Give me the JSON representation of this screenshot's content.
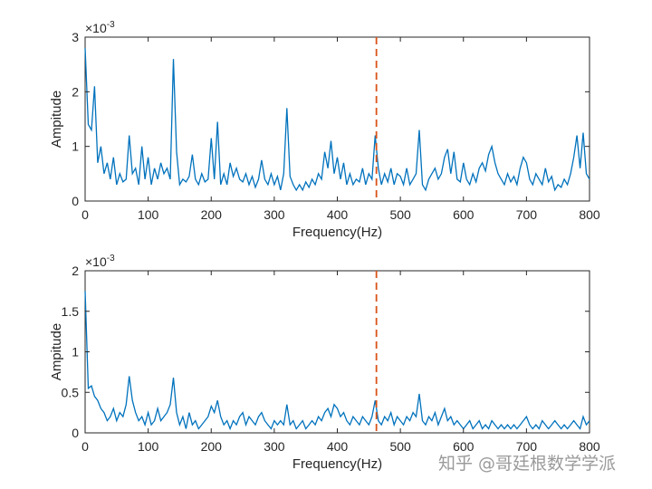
{
  "watermark": "知乎 @哥廷根数学学派",
  "chart_data": [
    {
      "type": "line",
      "xlabel": "Frequency(Hz)",
      "ylabel": "Ampitude",
      "exponent_label": "×10",
      "exponent": "-3",
      "xlim": [
        0,
        800
      ],
      "ylim": [
        0,
        3
      ],
      "xticks": [
        "0",
        "100",
        "200",
        "300",
        "400",
        "500",
        "600",
        "700",
        "800"
      ],
      "yticks": [
        "0",
        "1",
        "2",
        "3"
      ],
      "ytick_values": [
        0,
        1,
        2,
        3
      ],
      "marker_line_x": 462,
      "line_color": "#0072BD",
      "marker_color": "#D95319",
      "x_step": 5,
      "y_scale": 0.001,
      "values": [
        2.8,
        1.4,
        1.3,
        2.1,
        0.7,
        1.0,
        0.5,
        0.7,
        0.4,
        0.8,
        0.3,
        0.5,
        0.35,
        0.4,
        1.2,
        0.5,
        0.6,
        0.3,
        1.0,
        0.4,
        0.8,
        0.3,
        0.6,
        0.4,
        0.7,
        0.5,
        0.6,
        0.4,
        2.6,
        0.9,
        0.3,
        0.4,
        0.35,
        0.45,
        0.85,
        0.4,
        0.3,
        0.5,
        0.35,
        0.4,
        1.15,
        0.4,
        1.45,
        0.3,
        0.5,
        0.3,
        0.7,
        0.45,
        0.6,
        0.4,
        0.35,
        0.5,
        0.3,
        0.45,
        0.25,
        0.4,
        0.75,
        0.4,
        0.3,
        0.5,
        0.3,
        0.45,
        0.2,
        0.5,
        1.7,
        0.45,
        0.3,
        0.2,
        0.3,
        0.2,
        0.35,
        0.25,
        0.4,
        0.3,
        0.5,
        0.4,
        0.9,
        0.6,
        1.1,
        0.5,
        0.8,
        0.4,
        0.7,
        0.3,
        0.5,
        0.3,
        0.4,
        0.35,
        0.6,
        0.3,
        0.5,
        0.4,
        1.2,
        0.6,
        0.3,
        0.5,
        0.35,
        0.6,
        0.3,
        0.5,
        0.45,
        0.3,
        0.6,
        0.3,
        0.4,
        0.5,
        1.3,
        0.3,
        0.2,
        0.4,
        0.5,
        0.6,
        0.4,
        0.5,
        0.8,
        0.95,
        0.5,
        0.9,
        0.4,
        0.35,
        0.7,
        0.4,
        0.3,
        0.5,
        0.35,
        0.6,
        0.7,
        0.55,
        0.85,
        1.0,
        0.7,
        0.5,
        0.4,
        0.3,
        0.5,
        0.35,
        0.45,
        0.3,
        0.6,
        0.8,
        0.7,
        0.4,
        0.3,
        0.5,
        0.4,
        0.3,
        0.6,
        0.35,
        0.45,
        0.2,
        0.3,
        0.25,
        0.4,
        0.3,
        0.5,
        0.8,
        1.2,
        0.6,
        1.25,
        0.5,
        0.4
      ]
    },
    {
      "type": "line",
      "xlabel": "Frequency(Hz)",
      "ylabel": "Ampitude",
      "exponent_label": "×10",
      "exponent": "-3",
      "xlim": [
        0,
        800
      ],
      "ylim": [
        0,
        2
      ],
      "xticks": [
        "0",
        "100",
        "200",
        "300",
        "400",
        "500",
        "600",
        "700",
        "800"
      ],
      "yticks": [
        "0",
        "0.5",
        "1",
        "1.5",
        "2"
      ],
      "ytick_values": [
        0,
        0.5,
        1,
        1.5,
        2
      ],
      "marker_line_x": 462,
      "line_color": "#0072BD",
      "marker_color": "#D95319",
      "x_step": 5,
      "y_scale": 0.001,
      "values": [
        1.75,
        0.55,
        0.58,
        0.45,
        0.4,
        0.3,
        0.25,
        0.15,
        0.2,
        0.3,
        0.15,
        0.25,
        0.2,
        0.35,
        0.7,
        0.4,
        0.25,
        0.15,
        0.2,
        0.1,
        0.25,
        0.1,
        0.15,
        0.3,
        0.15,
        0.2,
        0.25,
        0.35,
        0.68,
        0.25,
        0.1,
        0.2,
        0.05,
        0.25,
        0.1,
        0.15,
        0.05,
        0.1,
        0.15,
        0.2,
        0.33,
        0.25,
        0.4,
        0.2,
        0.1,
        0.15,
        0.05,
        0.15,
        0.1,
        0.2,
        0.25,
        0.1,
        0.2,
        0.15,
        0.1,
        0.2,
        0.25,
        0.15,
        0.1,
        0.05,
        0.15,
        0.1,
        0.15,
        0.1,
        0.35,
        0.1,
        0.15,
        0.05,
        0.1,
        0.15,
        0.05,
        0.1,
        0.15,
        0.1,
        0.2,
        0.15,
        0.25,
        0.3,
        0.2,
        0.35,
        0.3,
        0.2,
        0.25,
        0.15,
        0.1,
        0.2,
        0.15,
        0.1,
        0.2,
        0.15,
        0.1,
        0.2,
        0.4,
        0.15,
        0.1,
        0.2,
        0.15,
        0.25,
        0.1,
        0.2,
        0.15,
        0.1,
        0.2,
        0.15,
        0.25,
        0.2,
        0.48,
        0.15,
        0.1,
        0.2,
        0.15,
        0.25,
        0.1,
        0.2,
        0.3,
        0.15,
        0.2,
        0.1,
        0.15,
        0.1,
        0.05,
        0.1,
        0.15,
        0.05,
        0.1,
        0.15,
        0.05,
        0.1,
        0.05,
        0.15,
        0.1,
        0.05,
        0.1,
        0.05,
        0.1,
        0.05,
        0.1,
        0.05,
        0.1,
        0.15,
        0.2,
        0.1,
        0.05,
        0.1,
        0.05,
        0.15,
        0.1,
        0.05,
        0.1,
        0.15,
        0.1,
        0.05,
        0.1,
        0.05,
        0.1,
        0.15,
        0.1,
        0.05,
        0.2,
        0.1,
        0.15
      ]
    }
  ]
}
